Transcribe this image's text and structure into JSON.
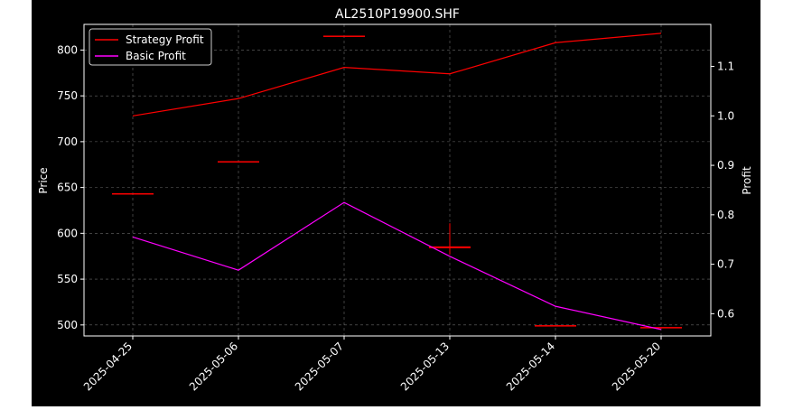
{
  "chart_data": {
    "type": "line",
    "title": "AL2510P19900.SHF",
    "xlabel": "",
    "ylabel": "Price",
    "ylabel_right": "Profit",
    "categories": [
      "2025-04-25",
      "2025-05-06",
      "2025-05-07",
      "2025-05-13",
      "2025-05-14",
      "2025-05-20"
    ],
    "ylim": [
      488,
      828
    ],
    "ylim_right": [
      0.555,
      1.185
    ],
    "yticks": [
      500,
      550,
      600,
      650,
      700,
      750,
      800
    ],
    "yticks_right": [
      0.6,
      0.7,
      0.8,
      0.9,
      1.0,
      1.1
    ],
    "grid": true,
    "legend_position": "top-left",
    "price_candles": [
      {
        "date": "2025-04-25",
        "open": 643,
        "close": 643,
        "high": 643,
        "low": 643
      },
      {
        "date": "2025-05-06",
        "open": 678,
        "close": 678,
        "high": 678,
        "low": 678
      },
      {
        "date": "2025-05-07",
        "open": 815,
        "close": 815,
        "high": 815,
        "low": 815
      },
      {
        "date": "2025-05-13",
        "open": 583,
        "close": 585,
        "high": 611,
        "low": 577
      },
      {
        "date": "2025-05-14",
        "open": 499,
        "close": 499,
        "high": 499,
        "low": 499
      },
      {
        "date": "2025-05-20",
        "open": 497,
        "close": 497,
        "high": 497,
        "low": 497
      }
    ],
    "series": [
      {
        "name": "Strategy Profit",
        "color": "#ff0000",
        "axis": "right",
        "values": [
          1.0,
          1.035,
          1.098,
          1.085,
          1.148,
          1.167
        ]
      },
      {
        "name": "Basic Profit",
        "color": "#ff00ff",
        "axis": "right",
        "values": [
          0.755,
          0.688,
          0.825,
          0.716,
          0.615,
          0.568
        ]
      }
    ],
    "candle_color": "#ff0000",
    "background_color": "#000000",
    "text_color": "#ffffff"
  }
}
